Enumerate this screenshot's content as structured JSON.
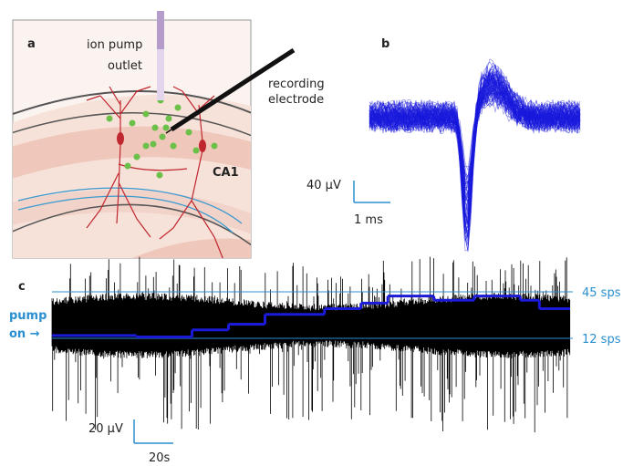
{
  "panels": {
    "a": {
      "label": "a",
      "pump_label": [
        "ion pump",
        "outlet"
      ],
      "electrode_label": [
        "recording",
        "electrode"
      ],
      "region": "CA1"
    },
    "b": {
      "label": "b",
      "scale_y": "40 µV",
      "scale_x": "1 ms"
    },
    "c": {
      "label": "c",
      "reference_lines": [
        {
          "value": 45,
          "label": "45 sps"
        },
        {
          "value": 12,
          "label": "12 sps"
        }
      ],
      "pump_marker": [
        "pump",
        "on →"
      ],
      "scale_y": "20 µV",
      "scale_x": "20s",
      "rate_steps": {
        "t": [
          0,
          44,
          73,
          92,
          111,
          142,
          161,
          175,
          199,
          220,
          244,
          254,
          270
        ],
        "sps": [
          14,
          13,
          18,
          22,
          29,
          33,
          37,
          42,
          39,
          42,
          39,
          33
        ]
      }
    }
  }
}
